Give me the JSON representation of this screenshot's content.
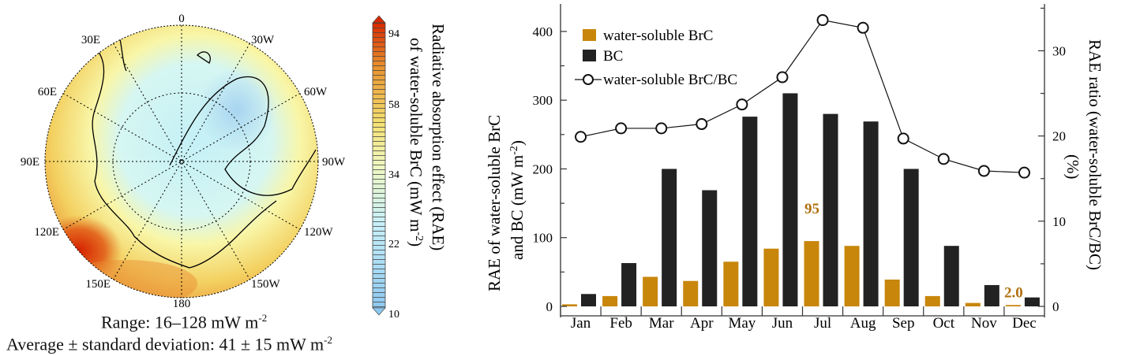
{
  "map": {
    "longitude_labels": [
      "0",
      "30W",
      "60W",
      "90W",
      "120W",
      "150W",
      "180",
      "150E",
      "120E",
      "90E",
      "60E",
      "30E"
    ],
    "colorbar": {
      "ticks": [
        "94",
        "58",
        "34",
        "22",
        "10"
      ],
      "title_line1": "Radiative absorption effect (RAE)",
      "title_line2": "of water-soluble BrC (mW m",
      "title_sup": "-2",
      "title_end": ")",
      "colors": [
        "#8ec8f0",
        "#c8f0f8",
        "#f8f4a0",
        "#f0c040",
        "#e07020",
        "#d02000"
      ]
    },
    "range_text": "Range: 16–128 mW m",
    "range_sup": "-2",
    "average_text": "Average ± standard deviation: 41 ± 15 mW m",
    "average_sup": "-2"
  },
  "chart_data": {
    "type": "bar",
    "categories": [
      "Jan",
      "Feb",
      "Mar",
      "Apr",
      "May",
      "Jun",
      "Jul",
      "Aug",
      "Sep",
      "Oct",
      "Nov",
      "Dec"
    ],
    "series": [
      {
        "name": "water-soluble BrC",
        "type": "bar",
        "axis": "left",
        "color": "#c8860a",
        "values": [
          3,
          15,
          43,
          37,
          65,
          84,
          95,
          88,
          39,
          15,
          5,
          2.0
        ]
      },
      {
        "name": "BC",
        "type": "bar",
        "axis": "left",
        "color": "#222222",
        "values": [
          18,
          63,
          200,
          169,
          276,
          310,
          280,
          269,
          200,
          88,
          31,
          13
        ]
      },
      {
        "name": "water-soluble BrC/BC",
        "type": "line",
        "axis": "right",
        "color": "#111111",
        "values": [
          19.9,
          20.9,
          20.9,
          21.4,
          23.7,
          26.9,
          33.6,
          32.7,
          19.7,
          17.3,
          15.9,
          15.7
        ]
      }
    ],
    "data_labels": [
      {
        "category": "Jul",
        "text": "95"
      },
      {
        "category": "Dec",
        "text": "2.0"
      }
    ],
    "ylabel_line1": "RAE of water-soluble BrC",
    "ylabel_line2": "and BC (mW m",
    "ylabel_sup": "-2",
    "ylabel_end": ")",
    "y2label_line1": "RAE ratio (water-soluble BrC/BC)",
    "y2label_line2": "(%)",
    "ylim": [
      0,
      440
    ],
    "y2lim": [
      0,
      35.5
    ],
    "yticks": [
      "0",
      "100",
      "200",
      "300",
      "400"
    ],
    "y2ticks": [
      "0",
      "10",
      "20",
      "30"
    ],
    "legend": "top-left",
    "grid": false
  }
}
